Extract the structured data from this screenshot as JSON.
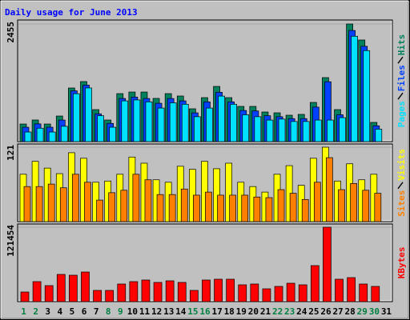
{
  "chart_data": [
    {
      "type": "bar",
      "title": "Daily usage for June 2013",
      "ylim": [
        0,
        2455
      ],
      "yticks": [
        2455
      ],
      "series": [
        {
          "name": "Hits",
          "color": "#00805c",
          "values": [
            367,
            451,
            367,
            534,
            1119,
            1253,
            668,
            451,
            1002,
            1035,
            1035,
            902,
            1002,
            952,
            685,
            918,
            1152,
            918,
            735,
            735,
            618,
            601,
            551,
            568,
            818,
            1336,
            668,
            2455,
            2121,
            401,
            null
          ]
        },
        {
          "name": "Files",
          "color": "#0040ff",
          "values": [
            300,
            370,
            300,
            450,
            1060,
            1180,
            580,
            380,
            900,
            930,
            900,
            800,
            900,
            850,
            600,
            830,
            1030,
            830,
            650,
            640,
            540,
            520,
            480,
            480,
            720,
            1250,
            560,
            2320,
            1990,
            330,
            null
          ]
        },
        {
          "name": "Pages",
          "color": "#00e0ff",
          "values": [
            200,
            280,
            200,
            320,
            1000,
            1120,
            540,
            300,
            850,
            870,
            830,
            700,
            810,
            780,
            520,
            700,
            950,
            780,
            560,
            520,
            450,
            470,
            420,
            420,
            450,
            450,
            500,
            2200,
            1900,
            260,
            null
          ]
        }
      ]
    },
    {
      "type": "bar",
      "ylim": [
        0,
        121
      ],
      "yticks": [
        121
      ],
      "series": [
        {
          "name": "Visits",
          "color": "#ffff00",
          "values": [
            77,
            98,
            87,
            78,
            112,
            103,
            64,
            66,
            77,
            105,
            95,
            68,
            64,
            90,
            85,
            98,
            86,
            95,
            64,
            57,
            48,
            77,
            91,
            59,
            103,
            121,
            66,
            94,
            68,
            77,
            null
          ]
        },
        {
          "name": "Sites",
          "color": "#ff8000",
          "values": [
            57,
            57,
            61,
            55,
            77,
            64,
            35,
            47,
            51,
            77,
            68,
            44,
            44,
            53,
            43,
            48,
            43,
            43,
            43,
            40,
            39,
            52,
            46,
            36,
            64,
            104,
            52,
            62,
            51,
            46,
            null
          ]
        }
      ]
    },
    {
      "type": "bar",
      "ylim": [
        0,
        121454
      ],
      "yticks": [
        121454
      ],
      "categories": [
        "1",
        "2",
        "3",
        "4",
        "5",
        "6",
        "7",
        "8",
        "9",
        "10",
        "11",
        "12",
        "13",
        "14",
        "15",
        "16",
        "17",
        "18",
        "19",
        "20",
        "21",
        "22",
        "23",
        "24",
        "25",
        "26",
        "27",
        "28",
        "29",
        "30",
        "31"
      ],
      "highlight_categories": [
        "1",
        "2",
        "8",
        "9",
        "15",
        "16",
        "22",
        "23",
        "29",
        "30"
      ],
      "highlight_color": "#008040",
      "series": [
        {
          "name": "KBytes",
          "color": "#ff0000",
          "values": [
            15672,
            32650,
            26120,
            44404,
            43098,
            48322,
            18284,
            18284,
            28732,
            32650,
            35262,
            31344,
            33956,
            31344,
            18284,
            35262,
            36568,
            36568,
            27426,
            28732,
            20896,
            24814,
            30038,
            27426,
            58770,
            121454,
            36568,
            39180,
            28732,
            24814,
            null
          ]
        }
      ]
    }
  ]
}
